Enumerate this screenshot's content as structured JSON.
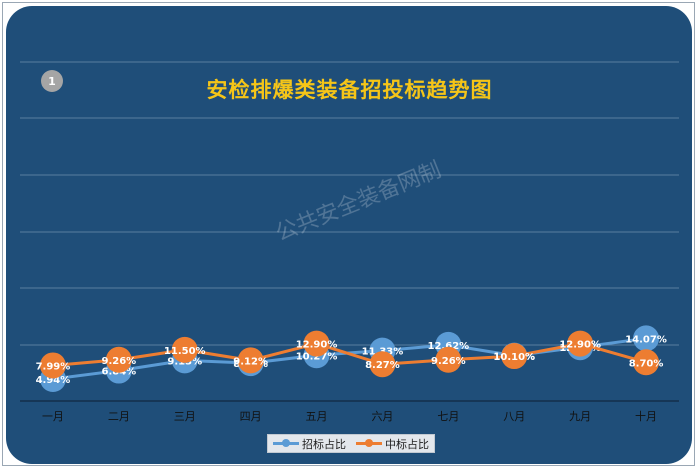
{
  "badge": "1",
  "watermark": "公共安全装备网制",
  "chart_data": {
    "type": "line",
    "title": "安检排爆类装备招投标趋势图",
    "categories": [
      "一月",
      "二月",
      "三月",
      "四月",
      "五月",
      "六月",
      "七月",
      "八月",
      "九月",
      "十月"
    ],
    "series": [
      {
        "name": "招标占比",
        "color": "#5b9bd5",
        "values": [
          4.94,
          6.84,
          9.13,
          8.52,
          10.27,
          11.33,
          12.62,
          10.19,
          12.09,
          14.07
        ],
        "labels": [
          "4.94%",
          "6.84%",
          "9.13%",
          "8.52%",
          "10.27%",
          "11.33%",
          "12.62%",
          "10.19%",
          "12.09%",
          "14.07%"
        ]
      },
      {
        "name": "中标占比",
        "color": "#ed7d31",
        "values": [
          7.99,
          9.26,
          11.5,
          9.12,
          12.9,
          8.27,
          9.26,
          10.1,
          12.9,
          8.7
        ],
        "labels": [
          "7.99%",
          "9.26%",
          "11.50%",
          "9.12%",
          "12.90%",
          "8.27%",
          "9.26%",
          "10.10%",
          "12.90%",
          "8.70%"
        ]
      }
    ],
    "grid": true,
    "legend": "bottom"
  }
}
